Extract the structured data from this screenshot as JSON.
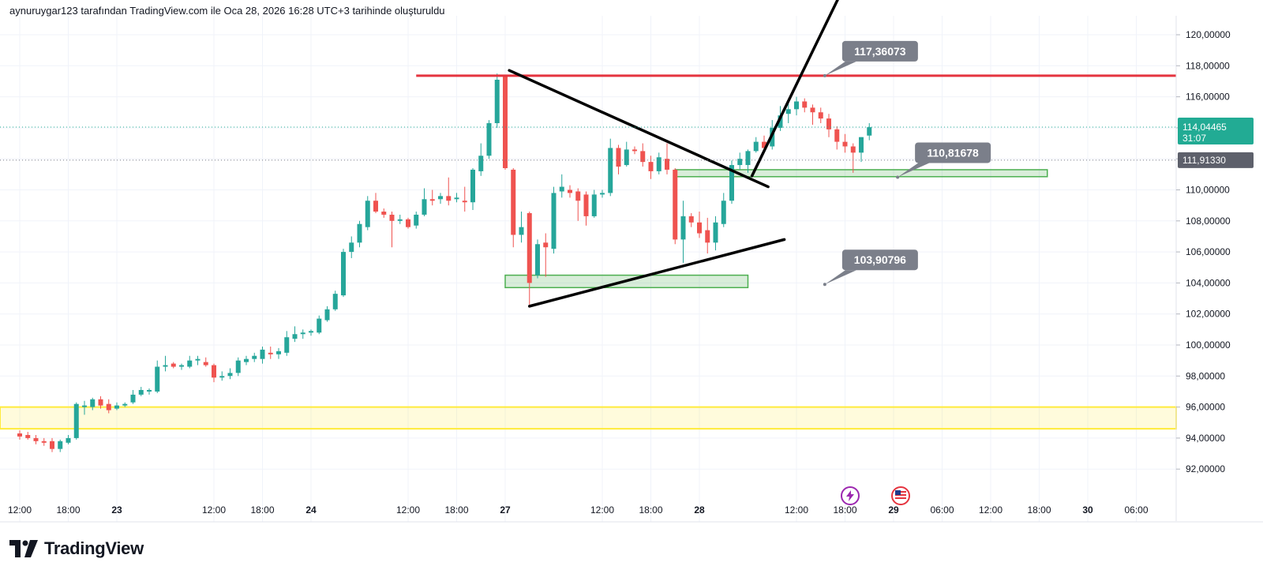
{
  "header": {
    "caption": "aynuruygar123 tarafından TradingView.com ile Oca 28, 2026 16:28 UTC+3 tarihinde oluşturuldu"
  },
  "footer": {
    "logo_text": "TradingView"
  },
  "colors": {
    "up": "#26a69a",
    "down": "#ef5350",
    "resistance": "#e5343f",
    "trendline": "#000000",
    "support_zone": "#4caf50",
    "yellow_zone": "#ffeb3b",
    "callout": "#7b7f8a",
    "current_price_tag": "#22ab94",
    "ref_price_tag": "#5d606b",
    "grid": "#f0f3fa"
  },
  "icons": [
    "flash-icon",
    "us-flag-icon",
    "tradingview-logo-icon"
  ],
  "chart_data": {
    "type": "candlestick",
    "interval_hours": 1,
    "ylim": [
      91,
      121
    ],
    "y_ticks": [
      "120,00000",
      "118,00000",
      "116,00000",
      "114,00000",
      "112,00000",
      "110,00000",
      "108,00000",
      "106,00000",
      "104,00000",
      "102,00000",
      "100,00000",
      "98,00000",
      "96,00000",
      "94,00000",
      "92,00000"
    ],
    "y_tick_values": [
      120,
      118,
      116,
      114,
      112,
      110,
      108,
      106,
      104,
      102,
      100,
      98,
      96,
      94,
      92
    ],
    "x_ticks": [
      {
        "label": "12:00",
        "bold": false,
        "t": 0
      },
      {
        "label": "18:00",
        "bold": false,
        "t": 6
      },
      {
        "label": "23",
        "bold": true,
        "t": 12
      },
      {
        "label": "12:00",
        "bold": false,
        "t": 24
      },
      {
        "label": "18:00",
        "bold": false,
        "t": 30
      },
      {
        "label": "24",
        "bold": true,
        "t": 36
      },
      {
        "label": "12:00",
        "bold": false,
        "t": 48
      },
      {
        "label": "18:00",
        "bold": false,
        "t": 54
      },
      {
        "label": "27",
        "bold": true,
        "t": 60
      },
      {
        "label": "12:00",
        "bold": false,
        "t": 72
      },
      {
        "label": "18:00",
        "bold": false,
        "t": 78
      },
      {
        "label": "28",
        "bold": true,
        "t": 84
      },
      {
        "label": "12:00",
        "bold": false,
        "t": 96
      },
      {
        "label": "18:00",
        "bold": false,
        "t": 102
      },
      {
        "label": "29",
        "bold": true,
        "t": 108
      },
      {
        "label": "06:00",
        "bold": false,
        "t": 114
      },
      {
        "label": "12:00",
        "bold": false,
        "t": 120
      },
      {
        "label": "18:00",
        "bold": false,
        "t": 126
      },
      {
        "label": "30",
        "bold": true,
        "t": 132
      },
      {
        "label": "06:00",
        "bold": false,
        "t": 138
      }
    ],
    "candles": [
      {
        "t": 0,
        "o": 94.3,
        "h": 94.5,
        "l": 93.9,
        "c": 94.1
      },
      {
        "t": 1,
        "o": 94.2,
        "h": 94.4,
        "l": 93.9,
        "c": 94.0
      },
      {
        "t": 2,
        "o": 94.0,
        "h": 94.2,
        "l": 93.6,
        "c": 93.8
      },
      {
        "t": 3,
        "o": 93.8,
        "h": 94.0,
        "l": 93.5,
        "c": 93.7
      },
      {
        "t": 4,
        "o": 93.8,
        "h": 94.0,
        "l": 93.1,
        "c": 93.3
      },
      {
        "t": 5,
        "o": 93.3,
        "h": 93.9,
        "l": 93.1,
        "c": 93.8
      },
      {
        "t": 6,
        "o": 93.7,
        "h": 94.2,
        "l": 93.6,
        "c": 94.0
      },
      {
        "t": 7,
        "o": 94.0,
        "h": 96.3,
        "l": 93.9,
        "c": 96.2
      },
      {
        "t": 8,
        "o": 96.0,
        "h": 96.4,
        "l": 95.5,
        "c": 96.1
      },
      {
        "t": 9,
        "o": 96.0,
        "h": 96.6,
        "l": 95.8,
        "c": 96.5
      },
      {
        "t": 10,
        "o": 96.5,
        "h": 96.7,
        "l": 95.9,
        "c": 96.1
      },
      {
        "t": 11,
        "o": 96.2,
        "h": 96.5,
        "l": 95.6,
        "c": 95.8
      },
      {
        "t": 12,
        "o": 95.9,
        "h": 96.3,
        "l": 95.8,
        "c": 96.1
      },
      {
        "t": 13,
        "o": 96.1,
        "h": 96.3,
        "l": 96.0,
        "c": 96.2
      },
      {
        "t": 14,
        "o": 96.3,
        "h": 97.1,
        "l": 96.2,
        "c": 96.8
      },
      {
        "t": 15,
        "o": 96.8,
        "h": 97.3,
        "l": 96.7,
        "c": 97.1
      },
      {
        "t": 16,
        "o": 97.0,
        "h": 97.2,
        "l": 96.8,
        "c": 97.1
      },
      {
        "t": 17,
        "o": 97.0,
        "h": 99.0,
        "l": 96.9,
        "c": 98.6
      },
      {
        "t": 18,
        "o": 98.6,
        "h": 99.3,
        "l": 98.3,
        "c": 98.7
      },
      {
        "t": 19,
        "o": 98.8,
        "h": 98.9,
        "l": 98.5,
        "c": 98.6
      },
      {
        "t": 20,
        "o": 98.6,
        "h": 98.8,
        "l": 98.4,
        "c": 98.7
      },
      {
        "t": 21,
        "o": 98.6,
        "h": 99.3,
        "l": 98.5,
        "c": 99.0
      },
      {
        "t": 22,
        "o": 99.0,
        "h": 99.3,
        "l": 98.7,
        "c": 99.1
      },
      {
        "t": 23,
        "o": 98.9,
        "h": 99.2,
        "l": 98.6,
        "c": 98.7
      },
      {
        "t": 24,
        "o": 98.7,
        "h": 98.8,
        "l": 97.6,
        "c": 97.9
      },
      {
        "t": 25,
        "o": 97.9,
        "h": 98.3,
        "l": 97.7,
        "c": 98.0
      },
      {
        "t": 26,
        "o": 98.0,
        "h": 98.5,
        "l": 97.8,
        "c": 98.2
      },
      {
        "t": 27,
        "o": 98.2,
        "h": 99.2,
        "l": 98.0,
        "c": 99.0
      },
      {
        "t": 28,
        "o": 98.9,
        "h": 99.3,
        "l": 98.7,
        "c": 99.1
      },
      {
        "t": 29,
        "o": 99.1,
        "h": 99.5,
        "l": 98.9,
        "c": 99.3
      },
      {
        "t": 30,
        "o": 99.1,
        "h": 99.9,
        "l": 98.8,
        "c": 99.7
      },
      {
        "t": 31,
        "o": 99.5,
        "h": 99.9,
        "l": 99.1,
        "c": 99.4
      },
      {
        "t": 32,
        "o": 99.4,
        "h": 99.8,
        "l": 99.1,
        "c": 99.6
      },
      {
        "t": 33,
        "o": 99.5,
        "h": 100.9,
        "l": 99.3,
        "c": 100.5
      },
      {
        "t": 34,
        "o": 100.4,
        "h": 101.2,
        "l": 100.2,
        "c": 100.7
      },
      {
        "t": 35,
        "o": 100.7,
        "h": 101.0,
        "l": 100.4,
        "c": 100.8
      },
      {
        "t": 36,
        "o": 100.8,
        "h": 101.0,
        "l": 100.6,
        "c": 100.9
      },
      {
        "t": 37,
        "o": 100.8,
        "h": 101.9,
        "l": 100.7,
        "c": 101.7
      },
      {
        "t": 38,
        "o": 101.6,
        "h": 102.5,
        "l": 101.5,
        "c": 102.3
      },
      {
        "t": 39,
        "o": 102.3,
        "h": 103.5,
        "l": 102.2,
        "c": 103.3
      },
      {
        "t": 40,
        "o": 103.2,
        "h": 106.2,
        "l": 103.1,
        "c": 106.0
      },
      {
        "t": 41,
        "o": 106.0,
        "h": 107.0,
        "l": 105.6,
        "c": 106.6
      },
      {
        "t": 42,
        "o": 106.6,
        "h": 108.0,
        "l": 106.3,
        "c": 107.8
      },
      {
        "t": 43,
        "o": 107.6,
        "h": 109.6,
        "l": 107.4,
        "c": 109.3
      },
      {
        "t": 44,
        "o": 109.3,
        "h": 109.8,
        "l": 108.5,
        "c": 108.6
      },
      {
        "t": 45,
        "o": 108.6,
        "h": 108.8,
        "l": 108.2,
        "c": 108.4
      },
      {
        "t": 46,
        "o": 108.4,
        "h": 108.6,
        "l": 106.3,
        "c": 108.0
      },
      {
        "t": 47,
        "o": 108.0,
        "h": 108.4,
        "l": 107.8,
        "c": 108.1
      },
      {
        "t": 48,
        "o": 108.1,
        "h": 108.2,
        "l": 107.5,
        "c": 107.6
      },
      {
        "t": 49,
        "o": 107.7,
        "h": 108.6,
        "l": 107.5,
        "c": 108.4
      },
      {
        "t": 50,
        "o": 108.4,
        "h": 110.1,
        "l": 108.3,
        "c": 109.4
      },
      {
        "t": 51,
        "o": 109.4,
        "h": 110.0,
        "l": 109.0,
        "c": 109.3
      },
      {
        "t": 52,
        "o": 109.4,
        "h": 109.8,
        "l": 109.1,
        "c": 109.6
      },
      {
        "t": 53,
        "o": 109.6,
        "h": 110.8,
        "l": 109.0,
        "c": 109.3
      },
      {
        "t": 54,
        "o": 109.4,
        "h": 109.8,
        "l": 109.2,
        "c": 109.5
      },
      {
        "t": 55,
        "o": 109.3,
        "h": 110.2,
        "l": 108.6,
        "c": 109.2
      },
      {
        "t": 56,
        "o": 109.2,
        "h": 111.4,
        "l": 108.7,
        "c": 111.3
      },
      {
        "t": 57,
        "o": 111.2,
        "h": 113.0,
        "l": 110.9,
        "c": 112.2
      },
      {
        "t": 58,
        "o": 112.2,
        "h": 114.5,
        "l": 112.0,
        "c": 114.3
      },
      {
        "t": 59,
        "o": 114.3,
        "h": 117.5,
        "l": 114.0,
        "c": 117.1
      },
      {
        "t": 60,
        "o": 117.3,
        "h": 117.4,
        "l": 111.3,
        "c": 111.4
      },
      {
        "t": 61,
        "o": 111.3,
        "h": 111.4,
        "l": 106.3,
        "c": 107.1
      },
      {
        "t": 62,
        "o": 107.1,
        "h": 108.6,
        "l": 106.6,
        "c": 107.6
      },
      {
        "t": 63,
        "o": 108.5,
        "h": 108.6,
        "l": 102.6,
        "c": 104.0
      },
      {
        "t": 64,
        "o": 104.5,
        "h": 106.8,
        "l": 104.3,
        "c": 106.5
      },
      {
        "t": 65,
        "o": 106.6,
        "h": 107.2,
        "l": 104.4,
        "c": 106.3
      },
      {
        "t": 66,
        "o": 106.2,
        "h": 110.2,
        "l": 105.9,
        "c": 109.8
      },
      {
        "t": 67,
        "o": 109.9,
        "h": 111.0,
        "l": 109.5,
        "c": 110.2
      },
      {
        "t": 68,
        "o": 110.0,
        "h": 110.3,
        "l": 109.5,
        "c": 109.8
      },
      {
        "t": 69,
        "o": 109.9,
        "h": 110.1,
        "l": 108.0,
        "c": 109.3
      },
      {
        "t": 70,
        "o": 109.7,
        "h": 109.9,
        "l": 107.7,
        "c": 108.3
      },
      {
        "t": 71,
        "o": 108.3,
        "h": 110.0,
        "l": 108.2,
        "c": 109.7
      },
      {
        "t": 72,
        "o": 109.7,
        "h": 110.0,
        "l": 109.5,
        "c": 109.8
      },
      {
        "t": 73,
        "o": 109.8,
        "h": 113.3,
        "l": 109.6,
        "c": 112.7
      },
      {
        "t": 74,
        "o": 112.7,
        "h": 112.9,
        "l": 111.0,
        "c": 111.5
      },
      {
        "t": 75,
        "o": 111.6,
        "h": 113.1,
        "l": 111.5,
        "c": 112.6
      },
      {
        "t": 76,
        "o": 112.6,
        "h": 112.8,
        "l": 112.3,
        "c": 112.5
      },
      {
        "t": 77,
        "o": 112.5,
        "h": 113.0,
        "l": 111.5,
        "c": 111.8
      },
      {
        "t": 78,
        "o": 111.8,
        "h": 112.2,
        "l": 110.7,
        "c": 111.2
      },
      {
        "t": 79,
        "o": 111.2,
        "h": 112.4,
        "l": 111.0,
        "c": 112.1
      },
      {
        "t": 80,
        "o": 112.0,
        "h": 113.0,
        "l": 111.0,
        "c": 111.3
      },
      {
        "t": 81,
        "o": 111.3,
        "h": 111.4,
        "l": 106.5,
        "c": 106.8
      },
      {
        "t": 82,
        "o": 106.8,
        "h": 109.3,
        "l": 105.3,
        "c": 108.3
      },
      {
        "t": 83,
        "o": 108.3,
        "h": 108.5,
        "l": 107.6,
        "c": 107.9
      },
      {
        "t": 84,
        "o": 107.9,
        "h": 108.6,
        "l": 106.9,
        "c": 107.2
      },
      {
        "t": 85,
        "o": 107.4,
        "h": 108.2,
        "l": 105.9,
        "c": 106.6
      },
      {
        "t": 86,
        "o": 106.6,
        "h": 108.3,
        "l": 106.1,
        "c": 107.9
      },
      {
        "t": 87,
        "o": 107.8,
        "h": 109.8,
        "l": 107.6,
        "c": 109.3
      },
      {
        "t": 88,
        "o": 109.3,
        "h": 111.9,
        "l": 109.1,
        "c": 111.6
      },
      {
        "t": 89,
        "o": 111.6,
        "h": 112.4,
        "l": 111.3,
        "c": 112.0
      },
      {
        "t": 90,
        "o": 111.6,
        "h": 112.6,
        "l": 111.1,
        "c": 112.5
      },
      {
        "t": 91,
        "o": 112.5,
        "h": 113.4,
        "l": 112.4,
        "c": 113.1
      },
      {
        "t": 92,
        "o": 113.1,
        "h": 113.5,
        "l": 112.5,
        "c": 112.7
      },
      {
        "t": 93,
        "o": 112.8,
        "h": 114.5,
        "l": 112.6,
        "c": 114.0
      },
      {
        "t": 94,
        "o": 114.0,
        "h": 115.4,
        "l": 113.8,
        "c": 114.8
      },
      {
        "t": 95,
        "o": 114.9,
        "h": 115.6,
        "l": 114.3,
        "c": 115.2
      },
      {
        "t": 96,
        "o": 115.2,
        "h": 116.0,
        "l": 114.8,
        "c": 115.7
      },
      {
        "t": 97,
        "o": 115.7,
        "h": 115.9,
        "l": 115.0,
        "c": 115.3
      },
      {
        "t": 98,
        "o": 115.3,
        "h": 115.5,
        "l": 114.2,
        "c": 115.0
      },
      {
        "t": 99,
        "o": 115.0,
        "h": 115.3,
        "l": 114.3,
        "c": 114.6
      },
      {
        "t": 100,
        "o": 114.6,
        "h": 114.9,
        "l": 113.4,
        "c": 113.9
      },
      {
        "t": 101,
        "o": 113.9,
        "h": 114.1,
        "l": 112.6,
        "c": 113.1
      },
      {
        "t": 102,
        "o": 113.1,
        "h": 113.6,
        "l": 112.4,
        "c": 112.8
      },
      {
        "t": 103,
        "o": 112.8,
        "h": 113.0,
        "l": 111.1,
        "c": 112.4
      },
      {
        "t": 104,
        "o": 112.4,
        "h": 113.4,
        "l": 111.8,
        "c": 113.4
      },
      {
        "t": 105,
        "o": 113.5,
        "h": 114.3,
        "l": 113.2,
        "c": 114.04
      }
    ]
  },
  "annotations": {
    "resistance_line": {
      "price": 117.36073,
      "from_t": 49,
      "to_t": 146
    },
    "yellow_zone": {
      "top": 96.0,
      "bottom": 94.6
    },
    "support_zone_upper": {
      "top": 111.3,
      "bottom": 110.85,
      "from_t": 81,
      "to_t": 127
    },
    "support_zone_lower": {
      "top": 104.5,
      "bottom": 103.7,
      "from_t": 60,
      "to_t": 90
    },
    "trendlines": [
      {
        "t1": 60.5,
        "p1": 117.7,
        "t2": 92.5,
        "p2": 110.2
      },
      {
        "t1": 63,
        "p1": 102.5,
        "t2": 94.5,
        "p2": 106.8
      },
      {
        "t1": 90.5,
        "p1": 110.9,
        "t2": 101.5,
        "p2": 122.7
      }
    ],
    "callouts": [
      {
        "text": "117,36073",
        "anchor_t": 99.5,
        "anchor_p": 117.36
      },
      {
        "text": "110,81678",
        "anchor_t": 108.5,
        "anchor_p": 110.81678
      },
      {
        "text": "103,90796",
        "anchor_t": 99.5,
        "anchor_p": 103.90796
      }
    ],
    "current_price": {
      "price": 114.04465,
      "label": "114,04465",
      "countdown": "31:07"
    },
    "ref_price": {
      "price": 111.9133,
      "label": "111,91330"
    }
  }
}
